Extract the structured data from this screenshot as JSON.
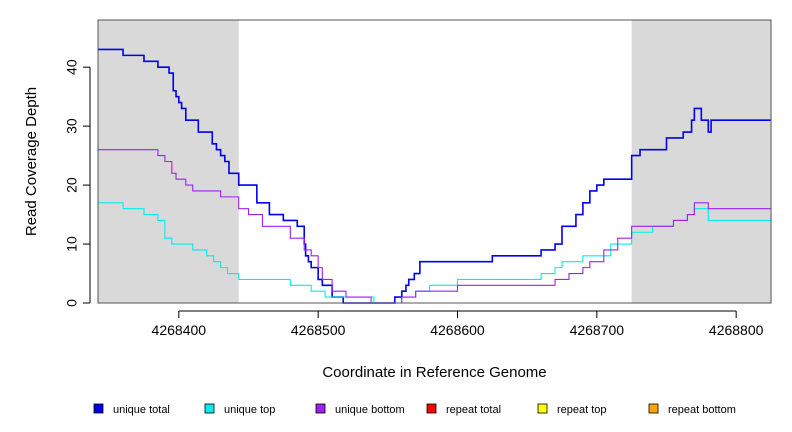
{
  "chart_data": {
    "type": "line",
    "title": "",
    "xlabel": "Coordinate in Reference Genome",
    "ylabel": "Read Coverage Depth",
    "xlim": [
      4268342,
      4268825
    ],
    "ylim": [
      0,
      48
    ],
    "x_ticks": [
      4268400,
      4268500,
      4268600,
      4268700,
      4268800
    ],
    "x_tick_labels": [
      "4268400",
      "4268500",
      "4268600",
      "4268700",
      "4268800"
    ],
    "y_ticks": [
      0,
      10,
      20,
      30,
      40
    ],
    "y_tick_labels": [
      "0",
      "10",
      "20",
      "30",
      "40"
    ],
    "shaded_regions": [
      {
        "x0": 4268342,
        "x1": 4268443,
        "color": "#d9d9d9"
      },
      {
        "x0": 4268725,
        "x1": 4268825,
        "color": "#d9d9d9"
      }
    ],
    "grid": false,
    "legend_position": "bottom",
    "series": [
      {
        "name": "unique total",
        "color": "#0000ee",
        "step": true,
        "x": [
          4268342,
          4268360,
          4268375,
          4268385,
          4268393,
          4268396,
          4268398,
          4268400,
          4268402,
          4268405,
          4268414,
          4268424,
          4268427,
          4268430,
          4268433,
          4268436,
          4268443,
          4268456,
          4268465,
          4268475,
          4268485,
          4268490,
          4268491,
          4268493,
          4268495,
          4268500,
          4268503,
          4268510,
          4268518,
          4268538,
          4268555,
          4268560,
          4268563,
          4268565,
          4268569,
          4268573,
          4268580,
          4268600,
          4268625,
          4268660,
          4268670,
          4268675,
          4268685,
          4268690,
          4268695,
          4268700,
          4268705,
          4268708,
          4268709,
          4268710,
          4268712,
          4268725,
          4268731,
          4268740,
          4268750,
          4268762,
          4268768,
          4268770,
          4268775,
          4268780,
          4268782,
          4268785,
          4268825
        ],
        "y": [
          43,
          42,
          41,
          40,
          39,
          36,
          35,
          34,
          33,
          31,
          29,
          27,
          26,
          25,
          24,
          22,
          20,
          17,
          15,
          14,
          13,
          10,
          8,
          7,
          6,
          4,
          3,
          1,
          0,
          0,
          1,
          2,
          3,
          4,
          5,
          7,
          7,
          7,
          8,
          9,
          10,
          13,
          15,
          17,
          19,
          20,
          21,
          21,
          21,
          21,
          21,
          25,
          26,
          26,
          28,
          29,
          31,
          33,
          31,
          29,
          31,
          31,
          31
        ]
      },
      {
        "name": "unique top",
        "color": "#00eeee",
        "step": true,
        "x": [
          4268342,
          4268360,
          4268375,
          4268385,
          4268390,
          4268395,
          4268398,
          4268400,
          4268410,
          4268420,
          4268425,
          4268430,
          4268435,
          4268443,
          4268480,
          4268495,
          4268505,
          4268510,
          4268525,
          4268540,
          4268555,
          4268560,
          4268570,
          4268580,
          4268600,
          4268625,
          4268660,
          4268670,
          4268675,
          4268690,
          4268710,
          4268725,
          4268740,
          4268755,
          4268765,
          4268770,
          4268780,
          4268825
        ],
        "y": [
          17,
          16,
          15,
          14,
          11,
          10,
          10,
          10,
          9,
          8,
          7,
          6,
          5,
          4,
          3,
          2,
          1,
          1,
          1,
          0,
          0,
          1,
          2,
          3,
          4,
          4,
          5,
          6,
          7,
          8,
          10,
          12,
          13,
          14,
          15,
          16,
          14,
          15
        ]
      },
      {
        "name": "unique bottom",
        "color": "#a020f0",
        "step": true,
        "x": [
          4268342,
          4268385,
          4268390,
          4268395,
          4268398,
          4268400,
          4268405,
          4268410,
          4268418,
          4268430,
          4268443,
          4268450,
          4268460,
          4268480,
          4268490,
          4268495,
          4268500,
          4268503,
          4268510,
          4268520,
          4268538,
          4268555,
          4268560,
          4268570,
          4268580,
          4268600,
          4268625,
          4268660,
          4268670,
          4268680,
          4268690,
          4268695,
          4268705,
          4268715,
          4268725,
          4268740,
          4268755,
          4268765,
          4268770,
          4268780,
          4268825
        ],
        "y": [
          26,
          25,
          24,
          22,
          21,
          21,
          20,
          19,
          19,
          18,
          16,
          15,
          13,
          11,
          9,
          8,
          6,
          4,
          2,
          1,
          0,
          0,
          1,
          2,
          2,
          3,
          3,
          3,
          4,
          5,
          6,
          7,
          9,
          11,
          13,
          13,
          14,
          15,
          17,
          16,
          16
        ]
      },
      {
        "name": "repeat total",
        "color": "#ff0000",
        "step": true,
        "x": [
          4268342,
          4268825
        ],
        "y": [
          0,
          0
        ]
      },
      {
        "name": "repeat top",
        "color": "#ffff00",
        "step": true,
        "x": [
          4268342,
          4268825
        ],
        "y": [
          0,
          0
        ]
      },
      {
        "name": "repeat bottom",
        "color": "#ffa500",
        "step": true,
        "x": [
          4268342,
          4268825
        ],
        "y": [
          0,
          0
        ]
      }
    ]
  }
}
